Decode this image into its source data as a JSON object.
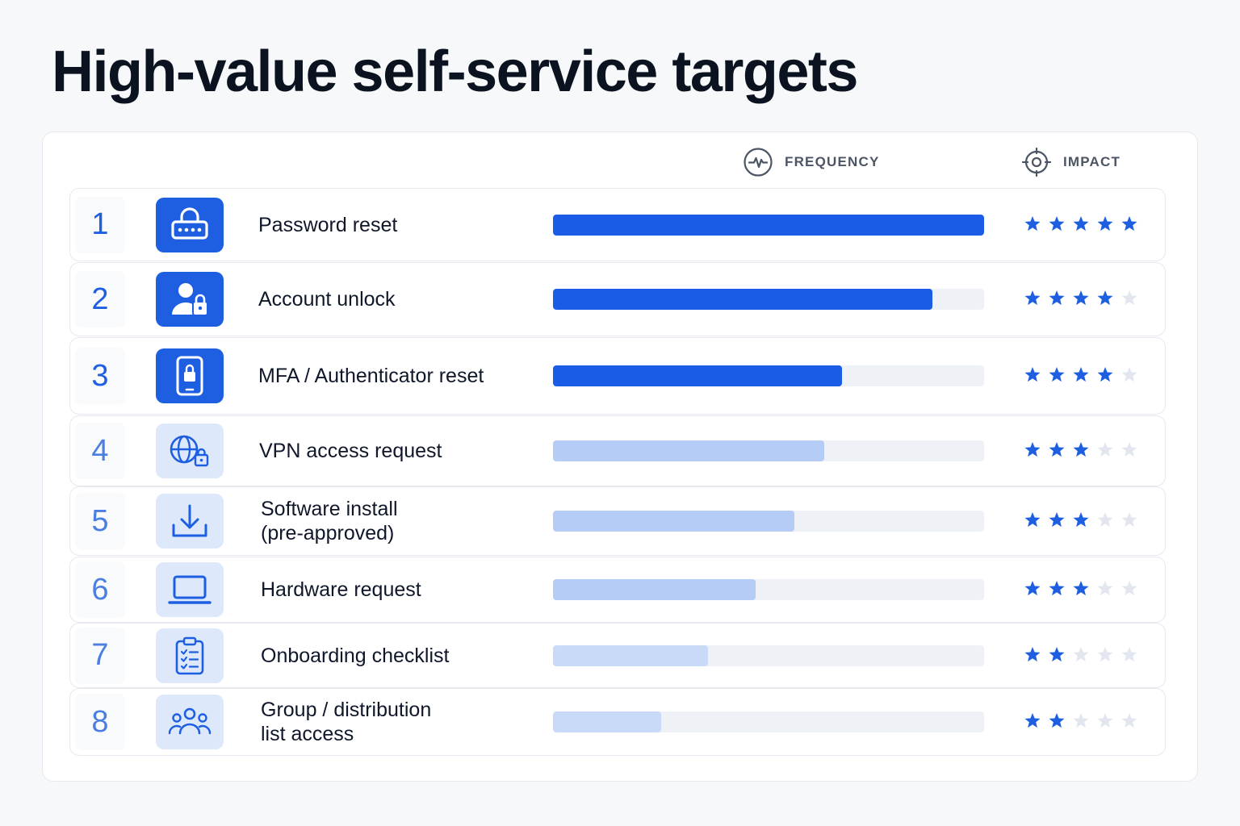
{
  "page": {
    "title": "High-value self-service targets"
  },
  "header": {
    "frequency_label": "FREQUENCY",
    "impact_label": "IMPACT",
    "frequency_icon": "activity-pulse-icon",
    "impact_icon": "target-icon"
  },
  "colors": {
    "accent": "#1d5fe0",
    "bar_strong": "#1a5ce5",
    "bar_light": "#b5ccf6",
    "track": "#eef1f6",
    "star_on": "#1d5fe0",
    "star_off": "#e2e6ee"
  },
  "max_stars": 5,
  "rows": [
    {
      "rank": "1",
      "label_lines": [
        "Password reset"
      ],
      "icon": "password-lock-icon",
      "frequency": 1.0,
      "impact": 5,
      "emphasis": "strong"
    },
    {
      "rank": "2",
      "label_lines": [
        "Account unlock"
      ],
      "icon": "user-lock-icon",
      "frequency": 0.88,
      "impact": 4,
      "emphasis": "strong"
    },
    {
      "rank": "3",
      "label_lines": [
        "MFA / Authenticator reset"
      ],
      "icon": "phone-lock-icon",
      "frequency": 0.67,
      "impact": 4,
      "emphasis": "strong"
    },
    {
      "rank": "4",
      "label_lines": [
        "VPN access request"
      ],
      "icon": "globe-lock-icon",
      "frequency": 0.63,
      "impact": 3,
      "emphasis": "light"
    },
    {
      "rank": "5",
      "label_lines": [
        "Software install",
        "(pre-approved)"
      ],
      "icon": "download-icon",
      "frequency": 0.56,
      "impact": 3,
      "emphasis": "light"
    },
    {
      "rank": "6",
      "label_lines": [
        "Hardware request"
      ],
      "icon": "laptop-icon",
      "frequency": 0.47,
      "impact": 3,
      "emphasis": "light"
    },
    {
      "rank": "7",
      "label_lines": [
        "Onboarding checklist"
      ],
      "icon": "clipboard-checklist-icon",
      "frequency": 0.36,
      "impact": 2,
      "emphasis": "light"
    },
    {
      "rank": "8",
      "label_lines": [
        "Group / distribution",
        "list access"
      ],
      "icon": "group-users-icon",
      "frequency": 0.25,
      "impact": 2,
      "emphasis": "light"
    }
  ]
}
